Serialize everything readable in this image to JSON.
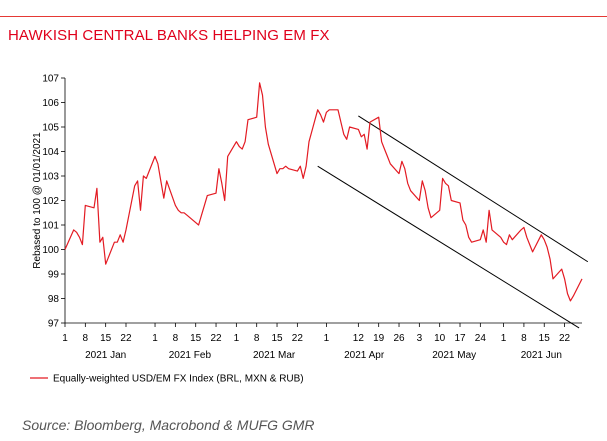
{
  "title": "HAWKISH CENTRAL BANKS HELPING EM FX",
  "source": "Source: Bloomberg, Macrobond & MUFG GMR",
  "colors": {
    "accent": "#e0001b",
    "series": "#e31b23",
    "trend": "#000000"
  },
  "chart_data": {
    "type": "line",
    "title": "HAWKISH CENTRAL BANKS HELPING EM FX",
    "ylabel": "Rebased to 100 @ 01/01/2021",
    "xlabel": "",
    "ylim": [
      97,
      107
    ],
    "y_ticks": [
      "97",
      "98",
      "99",
      "100",
      "101",
      "102",
      "103",
      "104",
      "105",
      "106",
      "107"
    ],
    "x_tick_labels": [
      {
        "date": "2021-01-01",
        "label": "1"
      },
      {
        "date": "2021-01-08",
        "label": "8"
      },
      {
        "date": "2021-01-15",
        "label": "15"
      },
      {
        "date": "2021-01-22",
        "label": "22"
      },
      {
        "date": "2021-02-01",
        "label": "1"
      },
      {
        "date": "2021-02-08",
        "label": "8"
      },
      {
        "date": "2021-02-15",
        "label": "15"
      },
      {
        "date": "2021-02-22",
        "label": "22"
      },
      {
        "date": "2021-03-01",
        "label": "1"
      },
      {
        "date": "2021-03-08",
        "label": "8"
      },
      {
        "date": "2021-03-15",
        "label": "15"
      },
      {
        "date": "2021-03-22",
        "label": "22"
      },
      {
        "date": "2021-04-01",
        "label": "1"
      },
      {
        "date": "2021-04-12",
        "label": "12"
      },
      {
        "date": "2021-04-19",
        "label": "19"
      },
      {
        "date": "2021-04-26",
        "label": "26"
      },
      {
        "date": "2021-05-03",
        "label": "3"
      },
      {
        "date": "2021-05-10",
        "label": "10"
      },
      {
        "date": "2021-05-17",
        "label": "17"
      },
      {
        "date": "2021-05-24",
        "label": "24"
      },
      {
        "date": "2021-06-01",
        "label": "1"
      },
      {
        "date": "2021-06-08",
        "label": "8"
      },
      {
        "date": "2021-06-15",
        "label": "15"
      },
      {
        "date": "2021-06-22",
        "label": "22"
      }
    ],
    "month_labels": [
      {
        "date": "2021-01-15",
        "label": "2021 Jan"
      },
      {
        "date": "2021-02-13",
        "label": "2021 Feb"
      },
      {
        "date": "2021-03-14",
        "label": "2021 Mar"
      },
      {
        "date": "2021-04-14",
        "label": "2021 Apr"
      },
      {
        "date": "2021-05-15",
        "label": "2021 May"
      },
      {
        "date": "2021-06-14",
        "label": "2021 Jun"
      }
    ],
    "x_range": [
      "2021-01-01",
      "2021-06-28"
    ],
    "legend_position": "bottom-left",
    "grid": false,
    "series": [
      {
        "name": "Equally-weighted USD/EM FX Index (BRL, MXN & RUB)",
        "x": [
          "2021-01-01",
          "2021-01-04",
          "2021-01-05",
          "2021-01-06",
          "2021-01-07",
          "2021-01-08",
          "2021-01-11",
          "2021-01-12",
          "2021-01-13",
          "2021-01-14",
          "2021-01-15",
          "2021-01-18",
          "2021-01-19",
          "2021-01-20",
          "2021-01-21",
          "2021-01-22",
          "2021-01-25",
          "2021-01-26",
          "2021-01-27",
          "2021-01-28",
          "2021-01-29",
          "2021-02-01",
          "2021-02-02",
          "2021-02-03",
          "2021-02-04",
          "2021-02-05",
          "2021-02-08",
          "2021-02-09",
          "2021-02-10",
          "2021-02-11",
          "2021-02-12",
          "2021-02-15",
          "2021-02-16",
          "2021-02-17",
          "2021-02-18",
          "2021-02-19",
          "2021-02-22",
          "2021-02-23",
          "2021-02-24",
          "2021-02-25",
          "2021-02-26",
          "2021-03-01",
          "2021-03-02",
          "2021-03-03",
          "2021-03-04",
          "2021-03-05",
          "2021-03-08",
          "2021-03-09",
          "2021-03-10",
          "2021-03-11",
          "2021-03-12",
          "2021-03-15",
          "2021-03-16",
          "2021-03-17",
          "2021-03-18",
          "2021-03-19",
          "2021-03-22",
          "2021-03-23",
          "2021-03-24",
          "2021-03-25",
          "2021-03-26",
          "2021-03-29",
          "2021-03-30",
          "2021-03-31",
          "2021-04-01",
          "2021-04-02",
          "2021-04-05",
          "2021-04-06",
          "2021-04-07",
          "2021-04-08",
          "2021-04-09",
          "2021-04-12",
          "2021-04-13",
          "2021-04-14",
          "2021-04-15",
          "2021-04-16",
          "2021-04-19",
          "2021-04-20",
          "2021-04-21",
          "2021-04-22",
          "2021-04-23",
          "2021-04-26",
          "2021-04-27",
          "2021-04-28",
          "2021-04-29",
          "2021-04-30",
          "2021-05-03",
          "2021-05-04",
          "2021-05-05",
          "2021-05-06",
          "2021-05-07",
          "2021-05-10",
          "2021-05-11",
          "2021-05-12",
          "2021-05-13",
          "2021-05-14",
          "2021-05-17",
          "2021-05-18",
          "2021-05-19",
          "2021-05-20",
          "2021-05-21",
          "2021-05-24",
          "2021-05-25",
          "2021-05-26",
          "2021-05-27",
          "2021-05-28",
          "2021-05-31",
          "2021-06-01",
          "2021-06-02",
          "2021-06-03",
          "2021-06-04",
          "2021-06-07",
          "2021-06-08",
          "2021-06-09",
          "2021-06-10",
          "2021-06-11",
          "2021-06-14",
          "2021-06-15",
          "2021-06-16",
          "2021-06-17",
          "2021-06-18",
          "2021-06-21",
          "2021-06-22",
          "2021-06-23",
          "2021-06-24",
          "2021-06-25",
          "2021-06-28"
        ],
        "values": [
          100.0,
          100.8,
          100.7,
          100.5,
          100.2,
          101.8,
          101.7,
          102.5,
          100.3,
          100.5,
          99.4,
          100.3,
          100.3,
          100.6,
          100.3,
          100.8,
          102.6,
          102.8,
          101.6,
          103.0,
          102.9,
          103.8,
          103.5,
          102.8,
          102.1,
          102.8,
          101.8,
          101.6,
          101.5,
          101.5,
          101.4,
          101.1,
          101.0,
          101.4,
          101.8,
          102.2,
          102.3,
          103.3,
          102.7,
          102.0,
          103.8,
          104.4,
          104.2,
          104.1,
          104.4,
          105.3,
          105.4,
          106.8,
          106.3,
          105.0,
          104.3,
          103.1,
          103.3,
          103.3,
          103.4,
          103.3,
          103.2,
          103.4,
          102.9,
          103.4,
          104.4,
          105.7,
          105.5,
          105.2,
          105.6,
          105.7,
          105.7,
          105.2,
          104.7,
          104.5,
          105.0,
          104.9,
          104.6,
          104.7,
          104.1,
          105.2,
          105.4,
          104.4,
          104.1,
          103.8,
          103.5,
          103.1,
          103.6,
          103.3,
          102.7,
          102.4,
          102.0,
          102.8,
          102.4,
          101.7,
          101.3,
          101.6,
          102.9,
          102.7,
          102.6,
          102.0,
          101.9,
          101.2,
          101.0,
          100.5,
          100.3,
          100.4,
          100.8,
          100.3,
          101.6,
          100.8,
          100.5,
          100.3,
          100.2,
          100.6,
          100.4,
          100.8,
          100.9,
          100.5,
          100.2,
          99.9,
          100.6,
          100.4,
          100.1,
          99.6,
          98.8,
          99.2,
          98.8,
          98.2,
          97.9,
          98.1,
          98.8
        ]
      }
    ],
    "trend_lines": [
      {
        "from": {
          "date": "2021-04-12",
          "value": 105.45
        },
        "to": {
          "date": "2021-06-30",
          "value": 99.5
        }
      },
      {
        "from": {
          "date": "2021-03-29",
          "value": 103.4
        },
        "to": {
          "date": "2021-06-27",
          "value": 96.8
        }
      }
    ]
  }
}
